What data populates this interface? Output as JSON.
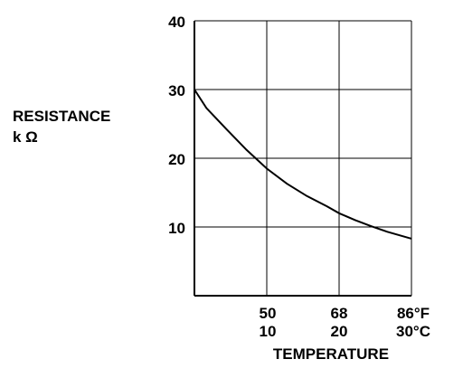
{
  "chart_data": {
    "type": "line",
    "ylabel": "RESISTANCE",
    "ylabel_unit": "k Ω",
    "xlabel": "TEMPERATURE",
    "ylim": [
      0,
      40
    ],
    "xlim_f": [
      32,
      86
    ],
    "y_ticks": [
      "10",
      "20",
      "30",
      "40"
    ],
    "x_ticks_f": [
      "50",
      "68",
      "86°F"
    ],
    "x_ticks_c": [
      "10",
      "20",
      "30°C"
    ],
    "grid": true,
    "series": [
      {
        "x_f": [
          32,
          35,
          40,
          45,
          50,
          55,
          60,
          65,
          68,
          72,
          76,
          80,
          86
        ],
        "y": [
          30,
          27.3,
          24.2,
          21.2,
          18.5,
          16.3,
          14.5,
          13.0,
          12.0,
          11.0,
          10.1,
          9.3,
          8.3
        ]
      }
    ]
  }
}
